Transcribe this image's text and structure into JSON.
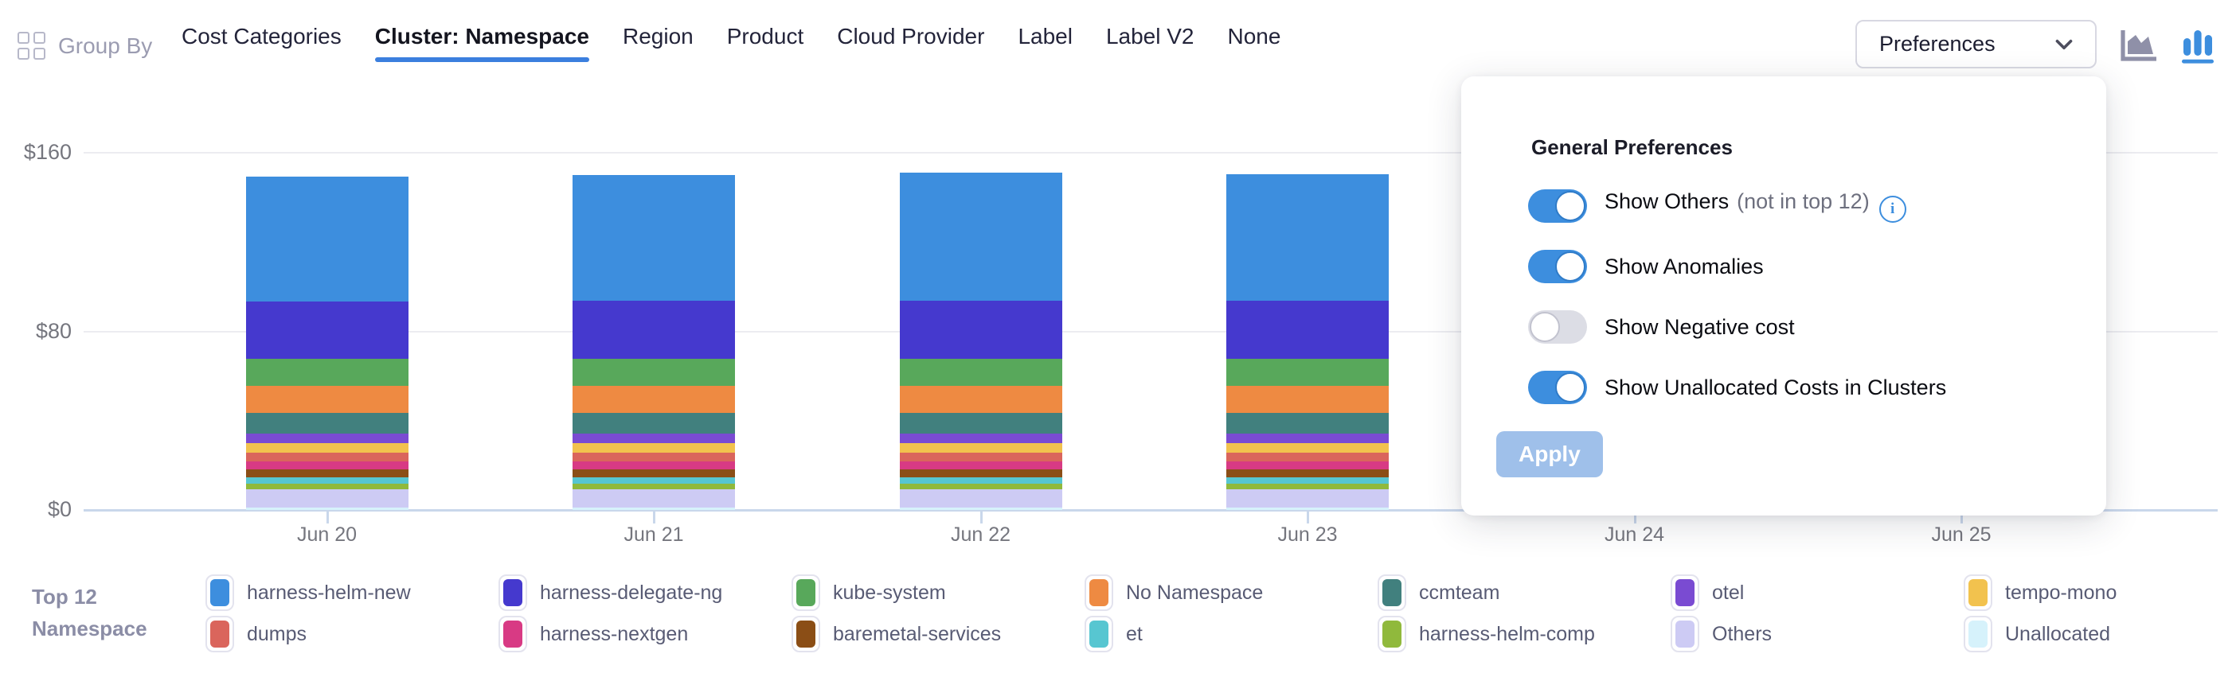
{
  "header": {
    "group_by_label": "Group By",
    "tabs": [
      {
        "label": "Cost Categories",
        "active": false
      },
      {
        "label": "Cluster: Namespace",
        "active": true
      },
      {
        "label": "Region",
        "active": false
      },
      {
        "label": "Product",
        "active": false
      },
      {
        "label": "Cloud Provider",
        "active": false
      },
      {
        "label": "Label",
        "active": false
      },
      {
        "label": "Label V2",
        "active": false
      },
      {
        "label": "None",
        "active": false
      }
    ],
    "preferences_button": {
      "label": "Preferences"
    },
    "chart_type_icons": [
      {
        "name": "area-chart",
        "active": false,
        "color": "#8f90a8"
      },
      {
        "name": "bar-chart",
        "active": true,
        "color": "#3d8ede"
      }
    ]
  },
  "preferences_panel": {
    "title": "General Preferences",
    "toggles": [
      {
        "label": "Show Others",
        "suffix": "(not in top 12)",
        "info": true,
        "on": true
      },
      {
        "label": "Show Anomalies",
        "suffix": "",
        "info": false,
        "on": true
      },
      {
        "label": "Show Negative cost",
        "suffix": "",
        "info": false,
        "on": false
      },
      {
        "label": "Show Unallocated Costs in Clusters",
        "suffix": "",
        "info": false,
        "on": true
      }
    ],
    "apply_label": "Apply",
    "apply_enabled": false
  },
  "chart_data": {
    "type": "bar",
    "stacked": true,
    "categories": [
      "Jun 20",
      "Jun 21",
      "Jun 22",
      "Jun 23",
      "Jun 24",
      "Jun 25"
    ],
    "ytick_labels": [
      "$0",
      "$80",
      "$160"
    ],
    "ytick_values": [
      0,
      80,
      160
    ],
    "ylim": [
      0,
      160
    ],
    "grid": true,
    "currency": "$",
    "series": [
      {
        "name": "harness-helm-new",
        "color": "#3D8EDE",
        "values": [
          56,
          56.5,
          57.5,
          56.8,
          null,
          null
        ]
      },
      {
        "name": "harness-delegate-ng",
        "color": "#4539CE",
        "values": [
          25.7,
          25.9,
          26,
          26,
          null,
          null
        ]
      },
      {
        "name": "kube-system",
        "color": "#58A85B",
        "values": [
          12,
          12,
          12,
          12,
          null,
          null
        ]
      },
      {
        "name": "No Namespace",
        "color": "#EE8A42",
        "values": [
          12.1,
          12.1,
          12.1,
          12.1,
          null,
          null
        ]
      },
      {
        "name": "ccmteam",
        "color": "#41807E",
        "values": [
          9.3,
          9.3,
          9.3,
          9.3,
          null,
          null
        ]
      },
      {
        "name": "otel",
        "color": "#7A4BD2",
        "values": [
          4.5,
          4.5,
          4.5,
          4.5,
          null,
          null
        ]
      },
      {
        "name": "tempo-mono",
        "color": "#F2C24E",
        "values": [
          4,
          4,
          4,
          4,
          null,
          null
        ]
      },
      {
        "name": "dumps",
        "color": "#DA655C",
        "values": [
          4,
          4,
          4,
          4,
          null,
          null
        ]
      },
      {
        "name": "harness-nextgen",
        "color": "#D83A84",
        "values": [
          3.7,
          3.7,
          3.7,
          3.7,
          null,
          null
        ]
      },
      {
        "name": "baremetal-services",
        "color": "#8B4E16",
        "values": [
          3.4,
          3.4,
          3.4,
          3.4,
          null,
          null
        ]
      },
      {
        "name": "et",
        "color": "#57C6D1",
        "values": [
          3,
          3,
          3,
          3,
          null,
          null
        ]
      },
      {
        "name": "harness-helm-comp",
        "color": "#90B93C",
        "values": [
          2.5,
          2.5,
          2.5,
          2.5,
          null,
          null
        ]
      },
      {
        "name": "Others",
        "color": "#CDCBF4",
        "values": [
          8,
          8,
          8,
          8,
          null,
          null
        ]
      },
      {
        "name": "Unallocated",
        "color": "#D6F2FB",
        "values": [
          1.2,
          1.2,
          1.2,
          1.2,
          null,
          null
        ]
      }
    ]
  },
  "legend": {
    "group_label_line1": "Top 12",
    "group_label_line2": "Namespace",
    "items": [
      {
        "label": "harness-helm-new",
        "color": "#3D8EDE"
      },
      {
        "label": "harness-delegate-ng",
        "color": "#4539CE"
      },
      {
        "label": "kube-system",
        "color": "#58A85B"
      },
      {
        "label": "No Namespace",
        "color": "#EE8A42"
      },
      {
        "label": "ccmteam",
        "color": "#41807E"
      },
      {
        "label": "otel",
        "color": "#7A4BD2"
      },
      {
        "label": "tempo-mono",
        "color": "#F2C24E"
      },
      {
        "label": "dumps",
        "color": "#DA655C"
      },
      {
        "label": "harness-nextgen",
        "color": "#D83A84"
      },
      {
        "label": "baremetal-services",
        "color": "#8B4E16"
      },
      {
        "label": "et",
        "color": "#57C6D1"
      },
      {
        "label": "harness-helm-comp",
        "color": "#90B93C"
      },
      {
        "label": "Others",
        "color": "#CDCBF4"
      },
      {
        "label": "Unallocated",
        "color": "#D6F2FB"
      }
    ]
  }
}
